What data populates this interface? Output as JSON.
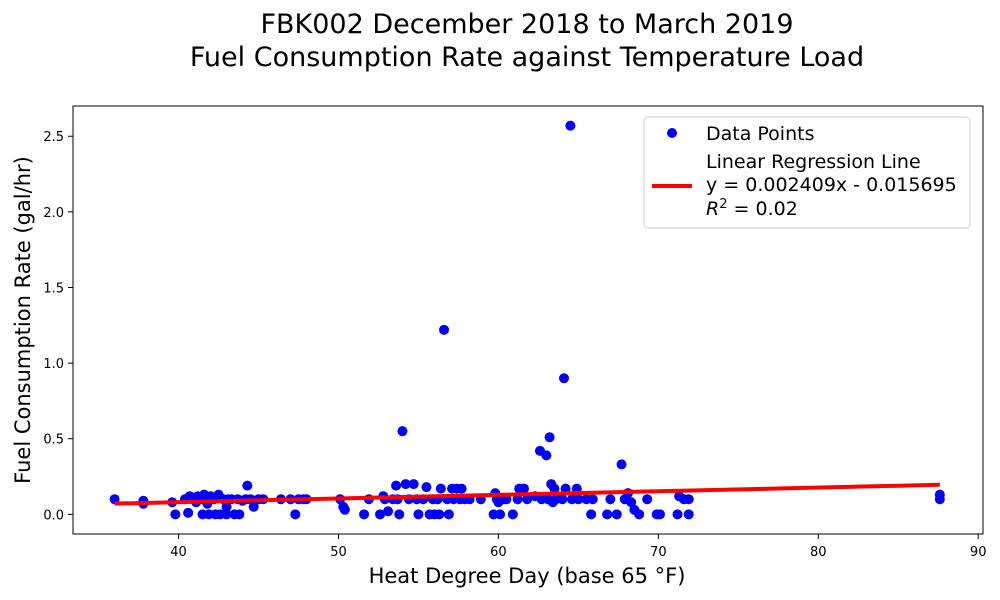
{
  "chart_data": {
    "type": "scatter",
    "title_line1": "FBK002 December 2018 to March 2019",
    "title_line2": "Fuel Consumption Rate against Temperature Load",
    "xlabel": "Heat Degree Day (base 65 °F)",
    "ylabel": "Fuel Consumption Rate (gal/hr)",
    "xlim": [
      33.4,
      90.3
    ],
    "ylim": [
      -0.13,
      2.7
    ],
    "x_ticks": [
      40,
      50,
      60,
      70,
      80,
      90
    ],
    "x_tick_labels": [
      "40",
      "50",
      "60",
      "70",
      "80",
      "90"
    ],
    "y_ticks": [
      0.0,
      0.5,
      1.0,
      1.5,
      2.0,
      2.5
    ],
    "y_tick_labels": [
      "0.0",
      "0.5",
      "1.0",
      "1.5",
      "2.0",
      "2.5"
    ],
    "grid": false,
    "legend_position": "top-right",
    "legend": {
      "points_label": "Data Points",
      "line_label_1": "Linear Regression Line",
      "line_label_2": "y = 0.002409x - 0.015695",
      "line_label_3_prefix": "R",
      "line_label_3_sup": "2",
      "line_label_3_suffix": " = 0.02"
    },
    "colors": {
      "points": "#0000ff",
      "regression": "#ff0000"
    },
    "regression": {
      "slope": 0.002409,
      "intercept": -0.015695,
      "x_range": [
        36.0,
        87.6
      ]
    },
    "series": [
      {
        "name": "Data Points",
        "points": [
          [
            36.0,
            0.1
          ],
          [
            37.8,
            0.09
          ],
          [
            37.8,
            0.07
          ],
          [
            39.6,
            0.08
          ],
          [
            39.8,
            0.0
          ],
          [
            40.4,
            0.1
          ],
          [
            40.6,
            0.01
          ],
          [
            40.7,
            0.12
          ],
          [
            40.9,
            0.1
          ],
          [
            41.1,
            0.08
          ],
          [
            41.2,
            0.12
          ],
          [
            41.4,
            0.1
          ],
          [
            41.5,
            0.0
          ],
          [
            41.6,
            0.13
          ],
          [
            41.8,
            0.07
          ],
          [
            41.9,
            0.0
          ],
          [
            42.0,
            0.12
          ],
          [
            42.2,
            0.1
          ],
          [
            42.3,
            0.0
          ],
          [
            42.5,
            0.13
          ],
          [
            42.6,
            0.0
          ],
          [
            42.8,
            0.1
          ],
          [
            43.0,
            0.05
          ],
          [
            43.0,
            0.0
          ],
          [
            43.1,
            0.1
          ],
          [
            43.3,
            0.1
          ],
          [
            43.5,
            0.0
          ],
          [
            43.7,
            0.1
          ],
          [
            43.8,
            0.0
          ],
          [
            44.0,
            0.09
          ],
          [
            44.2,
            0.1
          ],
          [
            44.3,
            0.19
          ],
          [
            44.5,
            0.1
          ],
          [
            44.7,
            0.05
          ],
          [
            45.0,
            0.1
          ],
          [
            45.3,
            0.1
          ],
          [
            46.4,
            0.1
          ],
          [
            47.0,
            0.1
          ],
          [
            47.3,
            0.0
          ],
          [
            47.5,
            0.1
          ],
          [
            47.8,
            0.1
          ],
          [
            48.0,
            0.1
          ],
          [
            50.1,
            0.1
          ],
          [
            50.3,
            0.05
          ],
          [
            50.4,
            0.03
          ],
          [
            51.6,
            0.0
          ],
          [
            51.9,
            0.1
          ],
          [
            52.6,
            0.0
          ],
          [
            52.8,
            0.12
          ],
          [
            52.9,
            0.1
          ],
          [
            53.1,
            0.02
          ],
          [
            53.4,
            0.1
          ],
          [
            53.6,
            0.19
          ],
          [
            53.7,
            0.1
          ],
          [
            53.8,
            0.0
          ],
          [
            54.0,
            0.55
          ],
          [
            54.2,
            0.2
          ],
          [
            54.4,
            0.1
          ],
          [
            54.7,
            0.2
          ],
          [
            54.9,
            0.1
          ],
          [
            55.0,
            0.0
          ],
          [
            55.3,
            0.1
          ],
          [
            55.5,
            0.18
          ],
          [
            55.7,
            0.0
          ],
          [
            55.9,
            0.1
          ],
          [
            56.0,
            0.0
          ],
          [
            56.2,
            0.1
          ],
          [
            56.3,
            0.0
          ],
          [
            56.4,
            0.17
          ],
          [
            56.6,
            1.22
          ],
          [
            56.8,
            0.1
          ],
          [
            56.9,
            0.0
          ],
          [
            57.1,
            0.17
          ],
          [
            57.2,
            0.1
          ],
          [
            57.4,
            0.17
          ],
          [
            57.6,
            0.1
          ],
          [
            57.7,
            0.17
          ],
          [
            57.9,
            0.1
          ],
          [
            58.2,
            0.1
          ],
          [
            58.9,
            0.1
          ],
          [
            59.7,
            0.0
          ],
          [
            59.8,
            0.14
          ],
          [
            59.9,
            0.1
          ],
          [
            60.0,
            0.08
          ],
          [
            60.1,
            0.0
          ],
          [
            60.3,
            0.1
          ],
          [
            60.5,
            0.1
          ],
          [
            60.9,
            0.0
          ],
          [
            61.2,
            0.1
          ],
          [
            61.3,
            0.17
          ],
          [
            61.6,
            0.17
          ],
          [
            61.8,
            0.1
          ],
          [
            62.3,
            0.12
          ],
          [
            62.6,
            0.42
          ],
          [
            62.7,
            0.1
          ],
          [
            63.0,
            0.39
          ],
          [
            63.1,
            0.1
          ],
          [
            63.2,
            0.51
          ],
          [
            63.3,
            0.2
          ],
          [
            63.4,
            0.08
          ],
          [
            63.5,
            0.17
          ],
          [
            63.6,
            0.1
          ],
          [
            63.7,
            0.12
          ],
          [
            64.0,
            0.1
          ],
          [
            64.1,
            0.9
          ],
          [
            64.2,
            0.17
          ],
          [
            64.5,
            2.57
          ],
          [
            64.6,
            0.1
          ],
          [
            64.9,
            0.17
          ],
          [
            65.0,
            0.1
          ],
          [
            65.5,
            0.1
          ],
          [
            65.8,
            0.0
          ],
          [
            65.9,
            0.1
          ],
          [
            66.8,
            0.0
          ],
          [
            67.0,
            0.1
          ],
          [
            67.4,
            0.0
          ],
          [
            67.7,
            0.33
          ],
          [
            67.9,
            0.1
          ],
          [
            68.1,
            0.14
          ],
          [
            68.3,
            0.08
          ],
          [
            68.5,
            0.03
          ],
          [
            68.8,
            0.0
          ],
          [
            69.3,
            0.1
          ],
          [
            69.9,
            0.0
          ],
          [
            70.1,
            0.0
          ],
          [
            71.2,
            0.0
          ],
          [
            71.3,
            0.12
          ],
          [
            71.6,
            0.1
          ],
          [
            71.9,
            0.0
          ],
          [
            71.9,
            0.1
          ],
          [
            87.6,
            0.13
          ],
          [
            87.6,
            0.1
          ]
        ]
      }
    ]
  }
}
